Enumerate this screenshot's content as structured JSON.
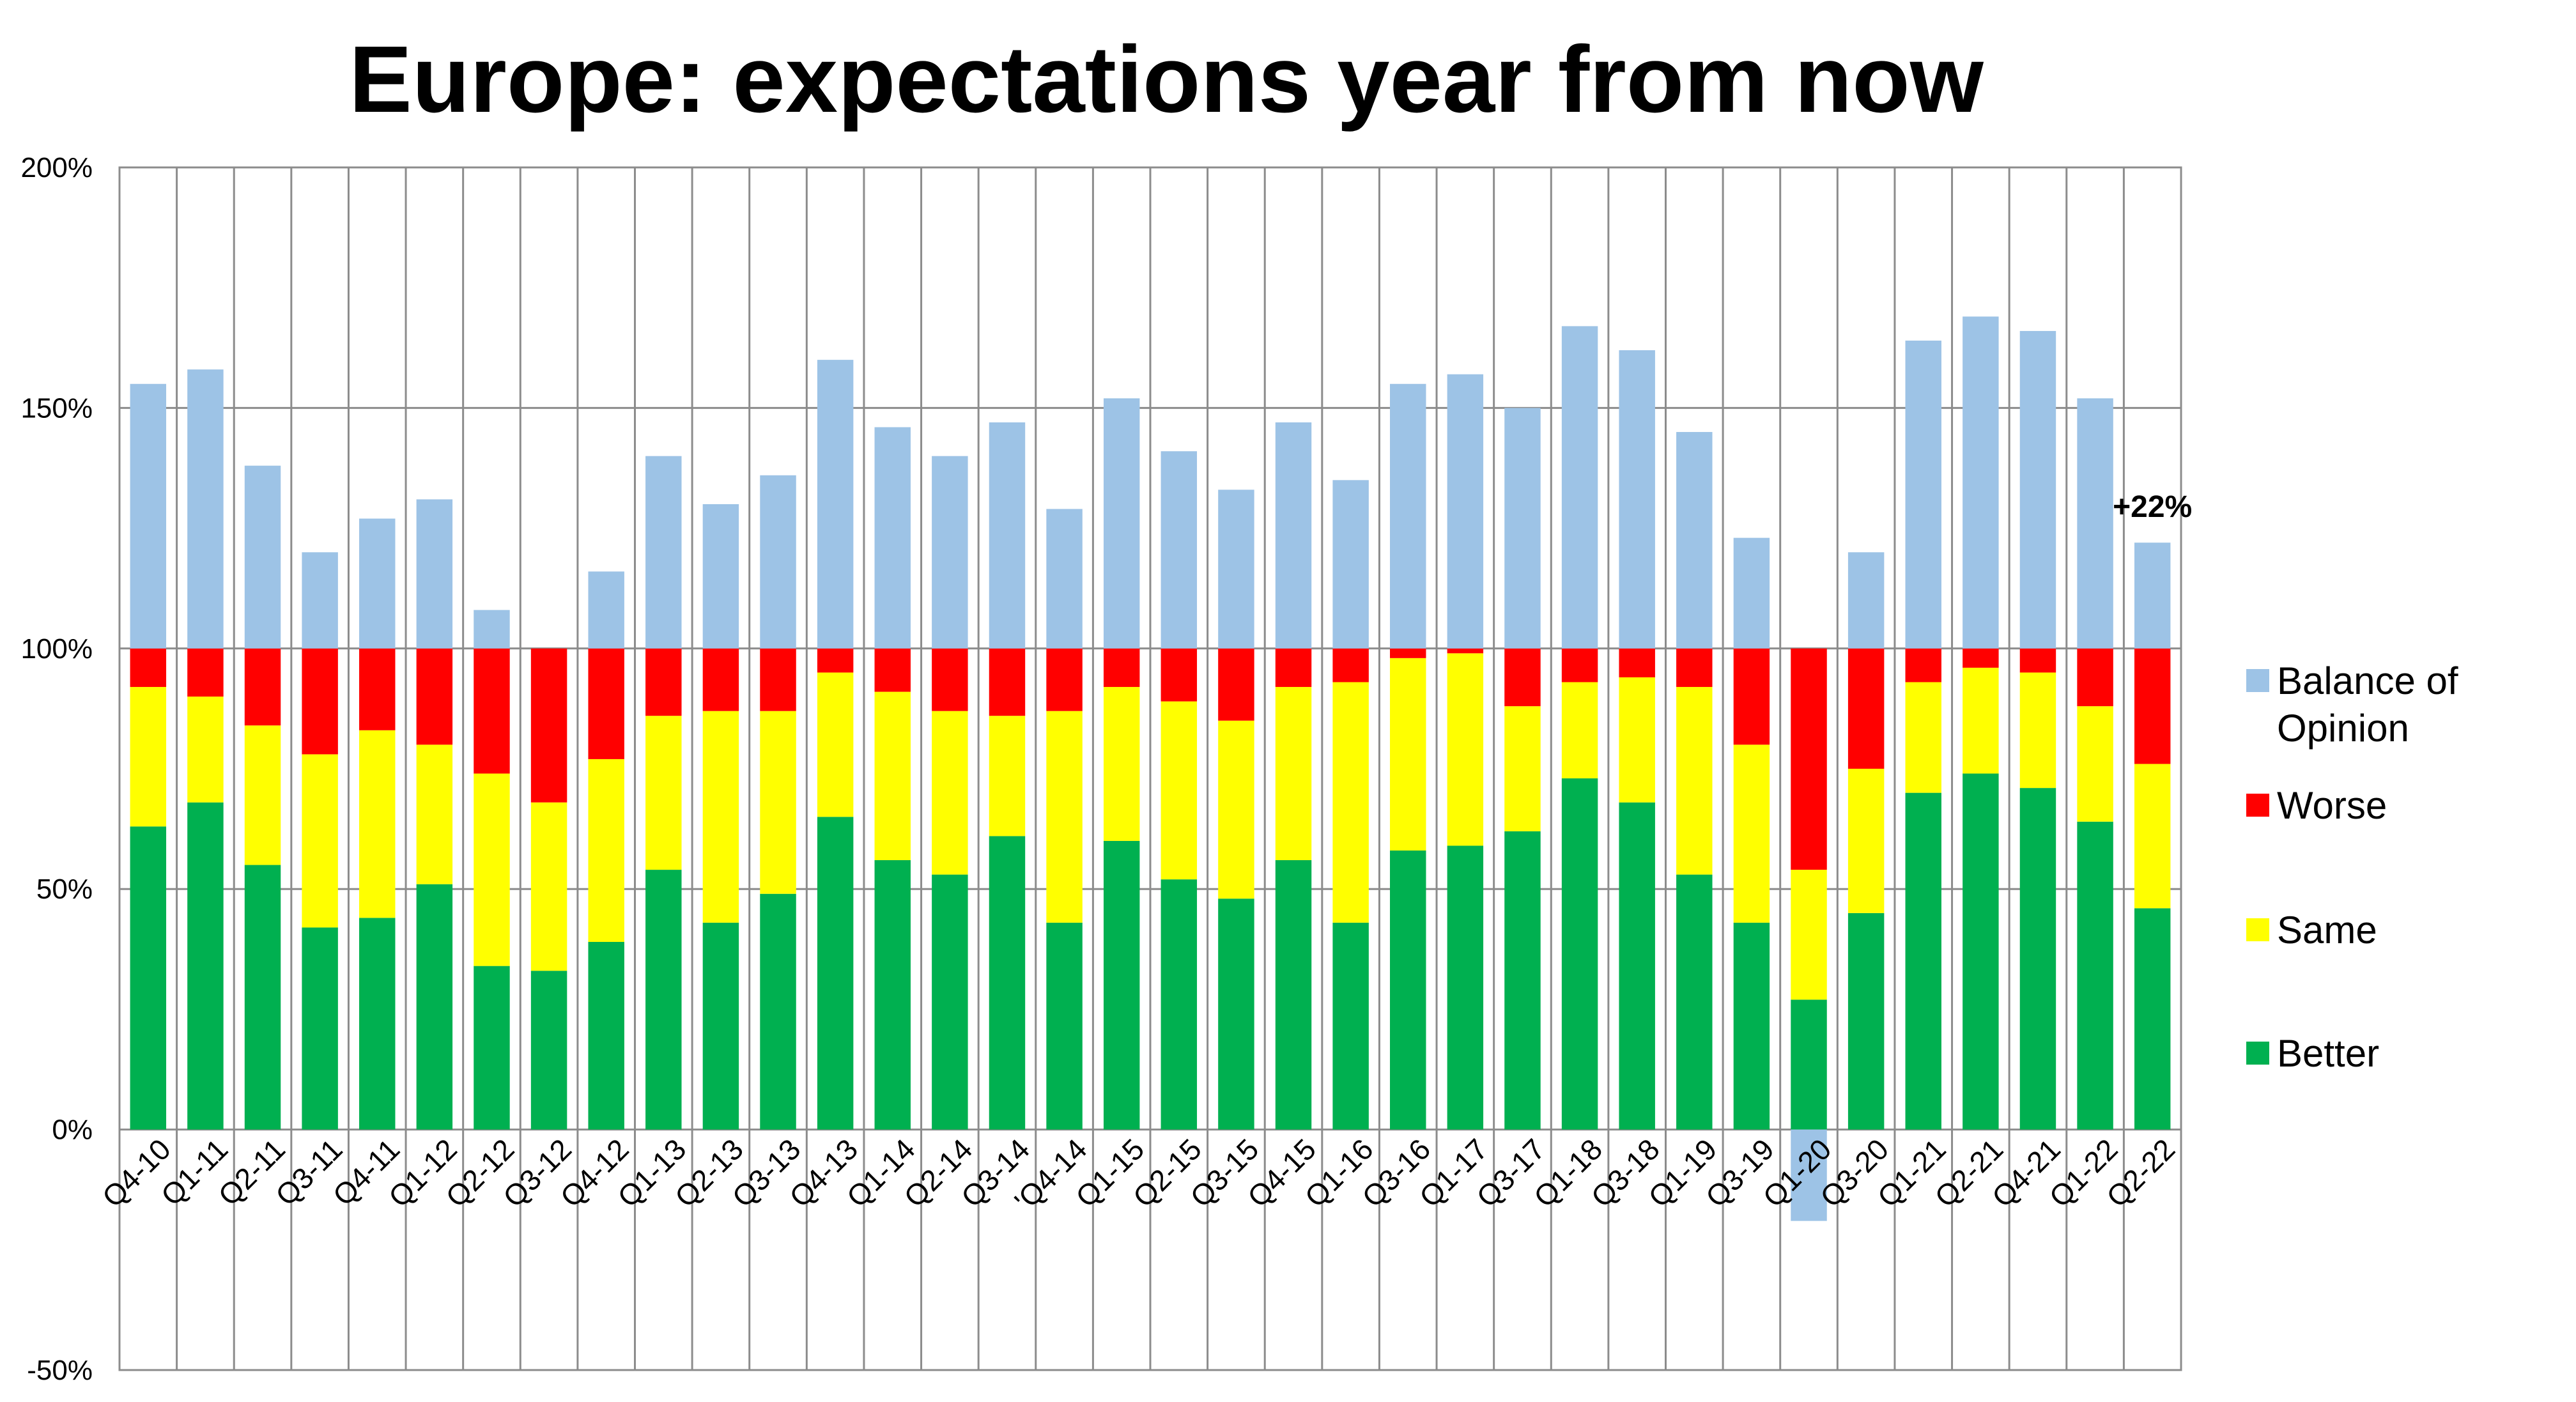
{
  "chart_data": {
    "type": "bar",
    "title": "Europe: expectations year from now",
    "xlabel": "",
    "ylabel": "",
    "stacked": true,
    "ylim": [
      -50,
      200
    ],
    "yticks": [
      "-50%",
      "0%",
      "50%",
      "100%",
      "150%",
      "200%"
    ],
    "ytick_values": [
      -50,
      0,
      50,
      100,
      150,
      200
    ],
    "grid": true,
    "legend_position": "right",
    "categories": [
      "Q4-10",
      "Q1-11",
      "Q2-11",
      "Q3-11",
      "Q4-11",
      "Q1-12",
      "Q2-12",
      "Q3-12",
      "Q4-12",
      "Q1-13",
      "Q2-13",
      "Q3-13",
      "Q4-13",
      "Q1-14",
      "Q2-14",
      "Q3-14",
      "'Q4-14",
      "Q1-15",
      "Q2-15",
      "Q3-15",
      "Q4-15",
      "Q1-16",
      "Q3-16",
      "Q1-17",
      "Q3-17",
      "Q1-18",
      "Q3-18",
      "Q1-19",
      "Q3-19",
      "Q1-20",
      "Q3-20",
      "Q1-21",
      "Q2-21",
      "Q4-21",
      "Q1-22",
      "Q2-22"
    ],
    "series": [
      {
        "name": "Better",
        "color": "#00b050",
        "values": [
          63,
          68,
          55,
          42,
          44,
          51,
          34,
          33,
          39,
          54,
          43,
          49,
          65,
          56,
          53,
          61,
          43,
          60,
          52,
          48,
          56,
          43,
          58,
          59,
          62,
          73,
          68,
          53,
          43,
          27,
          45,
          70,
          74,
          71,
          64,
          46
        ]
      },
      {
        "name": "Same",
        "color": "#ffff00",
        "values": [
          29,
          22,
          29,
          36,
          39,
          29,
          40,
          35,
          38,
          32,
          44,
          38,
          30,
          35,
          34,
          25,
          44,
          32,
          37,
          37,
          36,
          50,
          40,
          40,
          26,
          20,
          26,
          39,
          37,
          27,
          30,
          23,
          22,
          24,
          24,
          30
        ]
      },
      {
        "name": "Worse",
        "color": "#ff0000",
        "values": [
          8,
          10,
          16,
          22,
          17,
          20,
          26,
          32,
          23,
          14,
          13,
          13,
          5,
          9,
          13,
          14,
          13,
          8,
          11,
          15,
          8,
          7,
          2,
          1,
          12,
          7,
          6,
          8,
          20,
          46,
          25,
          7,
          4,
          5,
          12,
          24
        ]
      },
      {
        "name": "Balance of Opinion",
        "color": "#9dc3e6",
        "values": [
          55,
          58,
          38,
          20,
          27,
          31,
          8,
          0,
          16,
          40,
          30,
          36,
          60,
          46,
          40,
          47,
          29,
          52,
          41,
          33,
          47,
          35,
          55,
          57,
          50,
          67,
          62,
          45,
          23,
          -19,
          20,
          64,
          69,
          66,
          52,
          22
        ]
      }
    ],
    "annotations": [
      {
        "category": "Q2-22",
        "text": "+22%"
      }
    ]
  }
}
